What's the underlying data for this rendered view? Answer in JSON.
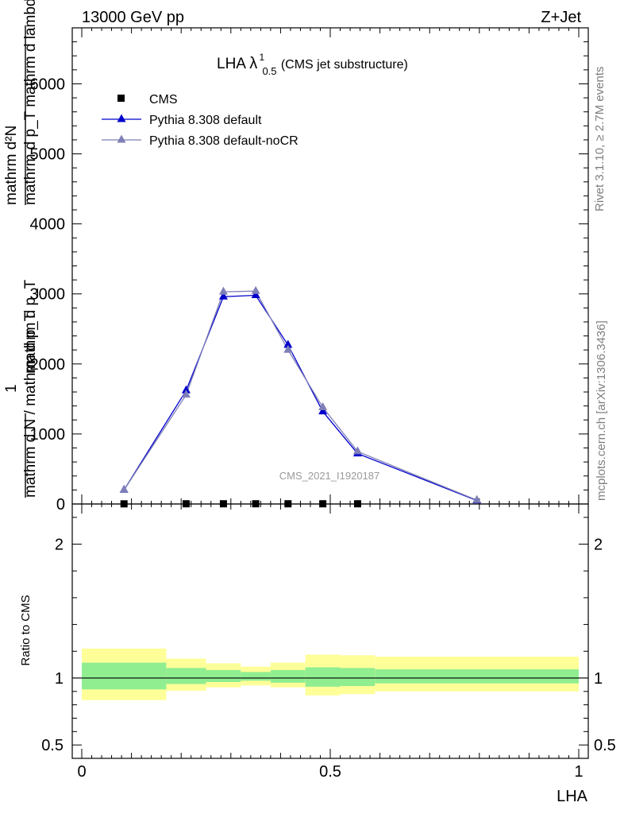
{
  "header": {
    "left": "13000 GeV pp",
    "right": "Z+Jet"
  },
  "side_text": {
    "rivet": "Rivet 3.1.10, ≥ 2.7M events",
    "mcplots": "mcplots.cern.ch [arXiv:1306.3436]"
  },
  "main_title": {
    "prefix": "LHA ",
    "lambda": "λ",
    "sup": "1",
    "sub": "0.5",
    "suffix": " (CMS jet substructure)"
  },
  "watermark": "CMS_2021_I1920187",
  "ylabel_lines": [
    "mathrm d²N",
    "mathrm d p_T mathrm d lambda",
    "mathrm d p_T",
    "mathrm d N / mathrm d p_T",
    "1"
  ],
  "ratio_ylabel": "Ratio to CMS",
  "xlabel": "LHA",
  "legend": [
    {
      "label": "CMS",
      "color": "#000000",
      "marker": "square"
    },
    {
      "label": "Pythia 8.308 default",
      "color": "#0000cc",
      "marker": "triangle"
    },
    {
      "label": "Pythia 8.308 default-noCR",
      "color": "#7f7fb8",
      "marker": "triangle"
    }
  ],
  "chart_data": {
    "type": "line",
    "xlim": [
      0,
      1
    ],
    "ylim": [
      0,
      6800
    ],
    "x_ticks": [
      {
        "v": 0,
        "label": "0"
      },
      {
        "v": 0.5,
        "label": "0.5"
      },
      {
        "v": 1,
        "label": "1"
      }
    ],
    "y_ticks": [
      {
        "v": 0,
        "label": "0"
      },
      {
        "v": 1000,
        "label": "1000"
      },
      {
        "v": 2000,
        "label": "2000"
      },
      {
        "v": 3000,
        "label": "3000"
      },
      {
        "v": 4000,
        "label": "4000"
      },
      {
        "v": 5000,
        "label": "5000"
      },
      {
        "v": 6000,
        "label": "6000"
      }
    ],
    "bin_edges": [
      0,
      0.17,
      0.25,
      0.32,
      0.38,
      0.45,
      0.52,
      0.59,
      1.0
    ],
    "x": [
      0.085,
      0.21,
      0.285,
      0.35,
      0.415,
      0.485,
      0.555,
      0.795
    ],
    "series": [
      {
        "name": "CMS",
        "values": [
          2,
          3,
          3,
          3,
          3,
          3,
          3,
          null
        ]
      },
      {
        "name": "Pythia 8.308 default",
        "values": [
          200,
          1620,
          2960,
          2980,
          2270,
          1320,
          720,
          50
        ]
      },
      {
        "name": "Pythia 8.308 default-noCR",
        "values": [
          200,
          1560,
          3030,
          3040,
          2200,
          1380,
          750,
          55
        ]
      }
    ],
    "ratio": {
      "ylim": [
        0.4,
        2.3
      ],
      "y_ticks": [
        {
          "v": 0.5,
          "label": "0.5"
        },
        {
          "v": 1,
          "label": "1"
        },
        {
          "v": 2,
          "label": "2"
        }
      ],
      "bands": [
        {
          "x0": 0,
          "x1": 0.17,
          "inner": [
            0.915,
            1.115
          ],
          "outer": [
            0.835,
            1.22
          ]
        },
        {
          "x0": 0.17,
          "x1": 0.25,
          "inner": [
            0.955,
            1.075
          ],
          "outer": [
            0.905,
            1.145
          ]
        },
        {
          "x0": 0.25,
          "x1": 0.32,
          "inner": [
            0.97,
            1.06
          ],
          "outer": [
            0.93,
            1.11
          ]
        },
        {
          "x0": 0.32,
          "x1": 0.38,
          "inner": [
            0.98,
            1.045
          ],
          "outer": [
            0.945,
            1.085
          ]
        },
        {
          "x0": 0.38,
          "x1": 0.45,
          "inner": [
            0.965,
            1.06
          ],
          "outer": [
            0.93,
            1.115
          ]
        },
        {
          "x0": 0.45,
          "x1": 0.52,
          "inner": [
            0.935,
            1.08
          ],
          "outer": [
            0.87,
            1.175
          ]
        },
        {
          "x0": 0.52,
          "x1": 0.59,
          "inner": [
            0.94,
            1.075
          ],
          "outer": [
            0.88,
            1.17
          ]
        },
        {
          "x0": 0.59,
          "x1": 1.0,
          "inner": [
            0.96,
            1.065
          ],
          "outer": [
            0.9,
            1.16
          ]
        }
      ],
      "inner_color": "#90ee90",
      "outer_color": "#ffff99"
    }
  }
}
